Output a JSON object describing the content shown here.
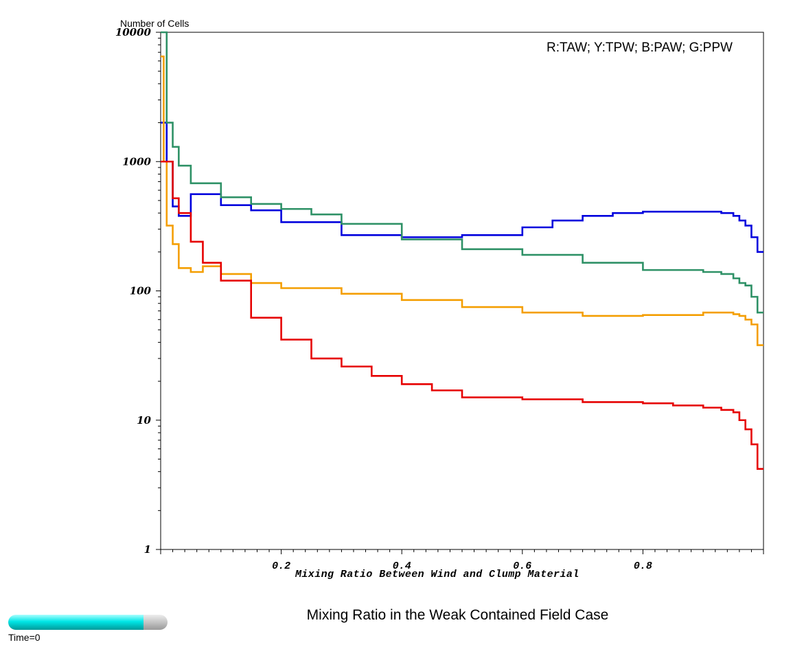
{
  "chart_data": {
    "type": "line",
    "title": "Mixing Ratio in the Weak Contained Field Case",
    "xlabel": "Mixing Ratio Between Wind and Clump Material",
    "ylabel": "Number of Cells",
    "legend": "R:TAW; Y:TPW; B:PAW; G:PPW",
    "legend_position": "top-right",
    "xlim": [
      0,
      1
    ],
    "ylim": [
      1,
      10000
    ],
    "y_scale": "log",
    "grid": false,
    "x_ticks": [
      0.2,
      0.4,
      0.6,
      0.8
    ],
    "y_ticks": [
      1,
      10,
      100,
      1000,
      10000
    ],
    "series": [
      {
        "color": "#0000dd",
        "x": [
          0,
          0.01,
          0.02,
          0.03,
          0.05,
          0.1,
          0.15,
          0.2,
          0.3,
          0.4,
          0.5,
          0.6,
          0.65,
          0.7,
          0.75,
          0.8,
          0.85,
          0.9,
          0.93,
          0.95,
          0.96,
          0.97,
          0.98,
          0.99,
          1.0
        ],
        "y": [
          2000,
          1000,
          450,
          380,
          560,
          460,
          420,
          340,
          270,
          260,
          270,
          310,
          350,
          380,
          400,
          410,
          410,
          410,
          400,
          380,
          350,
          320,
          260,
          200,
          200
        ]
      },
      {
        "color": "#2e9166",
        "x": [
          0,
          0.005,
          0.01,
          0.02,
          0.03,
          0.05,
          0.1,
          0.15,
          0.2,
          0.25,
          0.3,
          0.4,
          0.5,
          0.6,
          0.7,
          0.8,
          0.85,
          0.9,
          0.93,
          0.95,
          0.96,
          0.97,
          0.98,
          0.99,
          1.0
        ],
        "y": [
          10000,
          10000,
          2000,
          1300,
          930,
          680,
          530,
          470,
          430,
          390,
          330,
          250,
          210,
          190,
          165,
          145,
          145,
          140,
          135,
          125,
          115,
          110,
          90,
          68,
          68
        ]
      },
      {
        "color": "#f49e00",
        "x": [
          0,
          0.005,
          0.01,
          0.02,
          0.03,
          0.05,
          0.07,
          0.1,
          0.15,
          0.2,
          0.3,
          0.4,
          0.5,
          0.6,
          0.7,
          0.8,
          0.9,
          0.93,
          0.95,
          0.96,
          0.97,
          0.98,
          0.99,
          1.0
        ],
        "y": [
          6500,
          1000,
          320,
          230,
          150,
          140,
          155,
          135,
          115,
          105,
          95,
          85,
          75,
          68,
          64,
          65,
          68,
          68,
          66,
          64,
          60,
          55,
          38,
          38
        ]
      },
      {
        "color": "#e60000",
        "x": [
          0,
          0.01,
          0.02,
          0.03,
          0.05,
          0.07,
          0.1,
          0.15,
          0.2,
          0.25,
          0.3,
          0.35,
          0.4,
          0.45,
          0.5,
          0.6,
          0.7,
          0.8,
          0.85,
          0.9,
          0.93,
          0.95,
          0.96,
          0.97,
          0.98,
          0.99,
          1.0
        ],
        "y": [
          1000,
          1000,
          520,
          400,
          240,
          165,
          120,
          62,
          42,
          30,
          26,
          22,
          19,
          17,
          15,
          14.5,
          13.8,
          13.5,
          13,
          12.5,
          12,
          11.5,
          10,
          8.5,
          6.5,
          4.2,
          4.2
        ]
      }
    ]
  },
  "time_slider": {
    "label": "Time=0",
    "progress": 0.85
  }
}
